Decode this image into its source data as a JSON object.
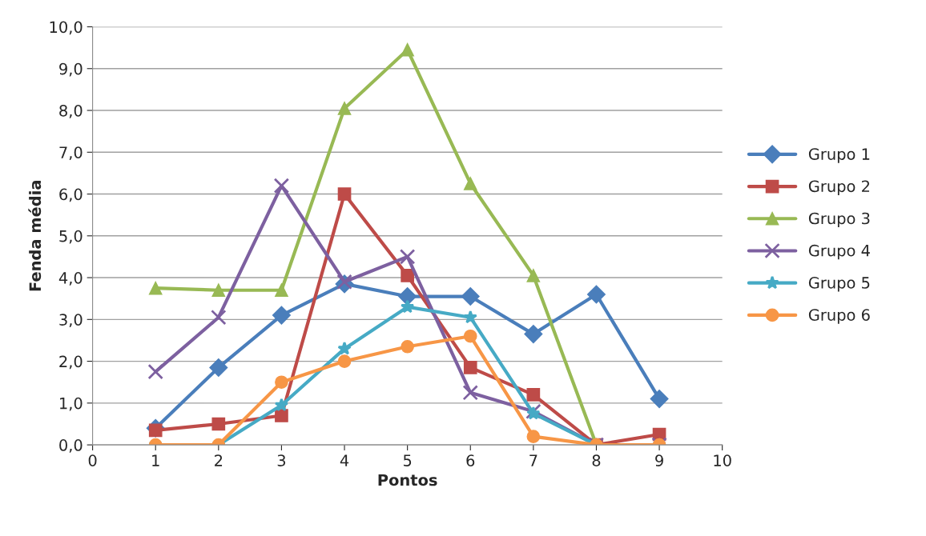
{
  "chart_data": {
    "type": "line",
    "xlabel": "Pontos",
    "ylabel": "Fenda média",
    "x": [
      1,
      2,
      3,
      4,
      5,
      6,
      7,
      8,
      9
    ],
    "xlim": [
      0,
      10
    ],
    "xticks": [
      0,
      1,
      2,
      3,
      4,
      5,
      6,
      7,
      8,
      9,
      10
    ],
    "ylim": [
      0,
      10
    ],
    "yticks": [
      {
        "value": 0,
        "label": "0,0"
      },
      {
        "value": 1,
        "label": "1,0"
      },
      {
        "value": 2,
        "label": "2,0"
      },
      {
        "value": 3,
        "label": "3,0"
      },
      {
        "value": 4,
        "label": "4,0"
      },
      {
        "value": 5,
        "label": "5,0"
      },
      {
        "value": 6,
        "label": "6,0"
      },
      {
        "value": 7,
        "label": "7,0"
      },
      {
        "value": 8,
        "label": "8,0"
      },
      {
        "value": 9,
        "label": "9,0"
      },
      {
        "value": 10,
        "label": "10,0"
      }
    ],
    "grid": "y",
    "legend": "right",
    "series": [
      {
        "name": "Grupo 1",
        "color": "#4a7ebb",
        "marker": "diamond",
        "values": [
          0.4,
          1.85,
          3.1,
          3.85,
          3.55,
          3.55,
          2.65,
          3.6,
          1.1
        ]
      },
      {
        "name": "Grupo 2",
        "color": "#be4b48",
        "marker": "square",
        "values": [
          0.35,
          0.5,
          0.7,
          6.0,
          4.05,
          1.85,
          1.2,
          0.0,
          0.25
        ]
      },
      {
        "name": "Grupo 3",
        "color": "#98b954",
        "marker": "triangle",
        "values": [
          3.75,
          3.7,
          3.7,
          8.05,
          9.45,
          6.25,
          4.05,
          0.0,
          0.0
        ]
      },
      {
        "name": "Grupo 4",
        "color": "#7d60a0",
        "marker": "cross",
        "values": [
          1.75,
          3.05,
          6.2,
          3.9,
          4.5,
          1.25,
          0.8,
          0.0,
          0.0
        ]
      },
      {
        "name": "Grupo 5",
        "color": "#46aac5",
        "marker": "star",
        "values": [
          0.0,
          0.0,
          0.95,
          2.3,
          3.3,
          3.05,
          0.75,
          0.0,
          0.0
        ]
      },
      {
        "name": "Grupo 6",
        "color": "#f79646",
        "marker": "circle",
        "values": [
          0.0,
          0.0,
          1.5,
          2.0,
          2.35,
          2.6,
          0.2,
          0.0,
          0.0
        ]
      }
    ]
  }
}
